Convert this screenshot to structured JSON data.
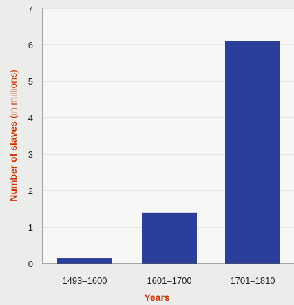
{
  "chart_data": {
    "type": "bar",
    "categories": [
      "1493–1600",
      "1601–1700",
      "1701–1810"
    ],
    "values": [
      0.15,
      1.4,
      6.1
    ],
    "xlabel": "Years",
    "ylabel": "Number of slaves",
    "ylabel_unit": "(in millions)",
    "yticks": [
      "0",
      "1",
      "2",
      "3",
      "4",
      "5",
      "6",
      "7"
    ],
    "ylim": [
      0,
      7
    ],
    "grid": true,
    "bar_color": "#2b3f9a",
    "axis_title_color": "#cc3300"
  }
}
